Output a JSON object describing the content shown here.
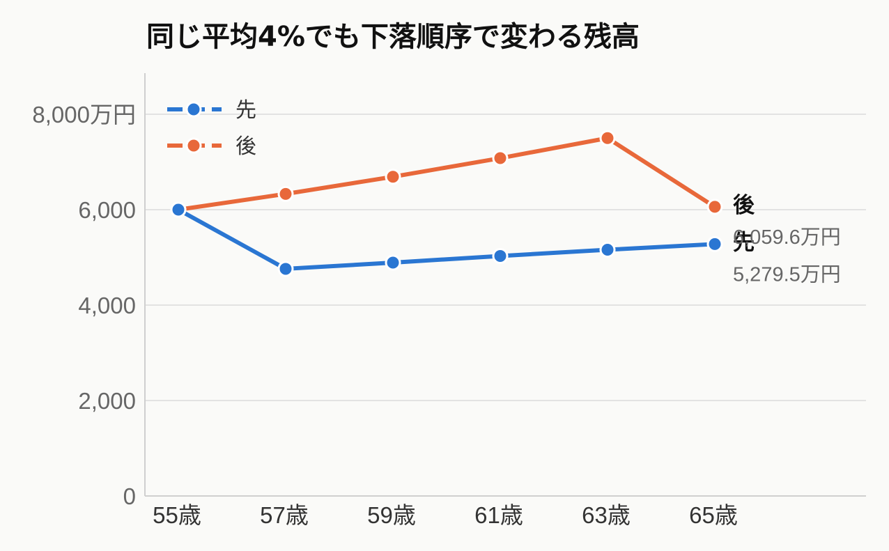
{
  "chart_data": {
    "type": "line",
    "title": "同じ平均4%でも下落順序で変わる残高",
    "xlabel": "",
    "ylabel": "",
    "categories": [
      "55歳",
      "57歳",
      "59歳",
      "61歳",
      "63歳",
      "65歳"
    ],
    "y_ticks": [
      "0",
      "2,000",
      "4,000",
      "6,000",
      "8,000万円"
    ],
    "y_tick_values": [
      0,
      2000,
      4000,
      6000,
      8000
    ],
    "ylim": [
      0,
      8000
    ],
    "grid": true,
    "legend_position": "top-left",
    "series": [
      {
        "name": "先",
        "color": "#2a76d2",
        "values": [
          6000,
          4760,
          4890,
          5030,
          5160,
          5279.5
        ],
        "end_label": "先",
        "end_value_label": "5,279.5万円"
      },
      {
        "name": "後",
        "color": "#e8683a",
        "values": [
          6000,
          6330,
          6690,
          7080,
          7500,
          6059.6
        ],
        "end_label": "後",
        "end_value_label": "6,059.6万円"
      }
    ]
  }
}
